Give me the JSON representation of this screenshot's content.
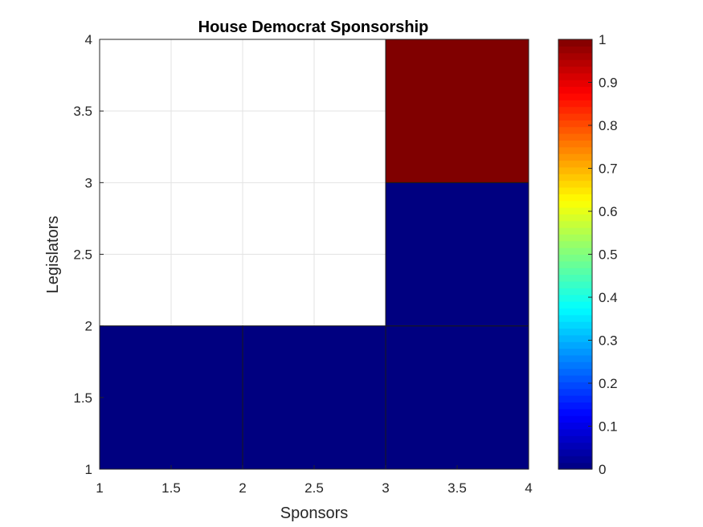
{
  "chart_data": {
    "type": "heatmap",
    "title": "House Democrat Sponsorship",
    "xlabel": "Sponsors",
    "ylabel": "Legislators",
    "xlim": [
      1,
      4
    ],
    "ylim": [
      1,
      4
    ],
    "x_ticks": [
      "1",
      "1.5",
      "2",
      "2.5",
      "3",
      "3.5",
      "4"
    ],
    "y_ticks": [
      "1",
      "1.5",
      "2",
      "2.5",
      "3",
      "3.5",
      "4"
    ],
    "grid": true,
    "colormap": "jet",
    "clim": [
      0,
      1
    ],
    "colorbar_ticks": [
      "0",
      "0.1",
      "0.2",
      "0.3",
      "0.4",
      "0.5",
      "0.6",
      "0.7",
      "0.8",
      "0.9",
      "1"
    ],
    "colorbar_location": "right",
    "cells": [
      {
        "x": [
          1,
          2
        ],
        "y": [
          1,
          2
        ],
        "value": 0
      },
      {
        "x": [
          2,
          3
        ],
        "y": [
          1,
          2
        ],
        "value": 0
      },
      {
        "x": [
          3,
          4
        ],
        "y": [
          1,
          2
        ],
        "value": 0
      },
      {
        "x": [
          3,
          4
        ],
        "y": [
          2,
          3
        ],
        "value": 0
      },
      {
        "x": [
          3,
          4
        ],
        "y": [
          3,
          4
        ],
        "value": 1
      }
    ]
  }
}
